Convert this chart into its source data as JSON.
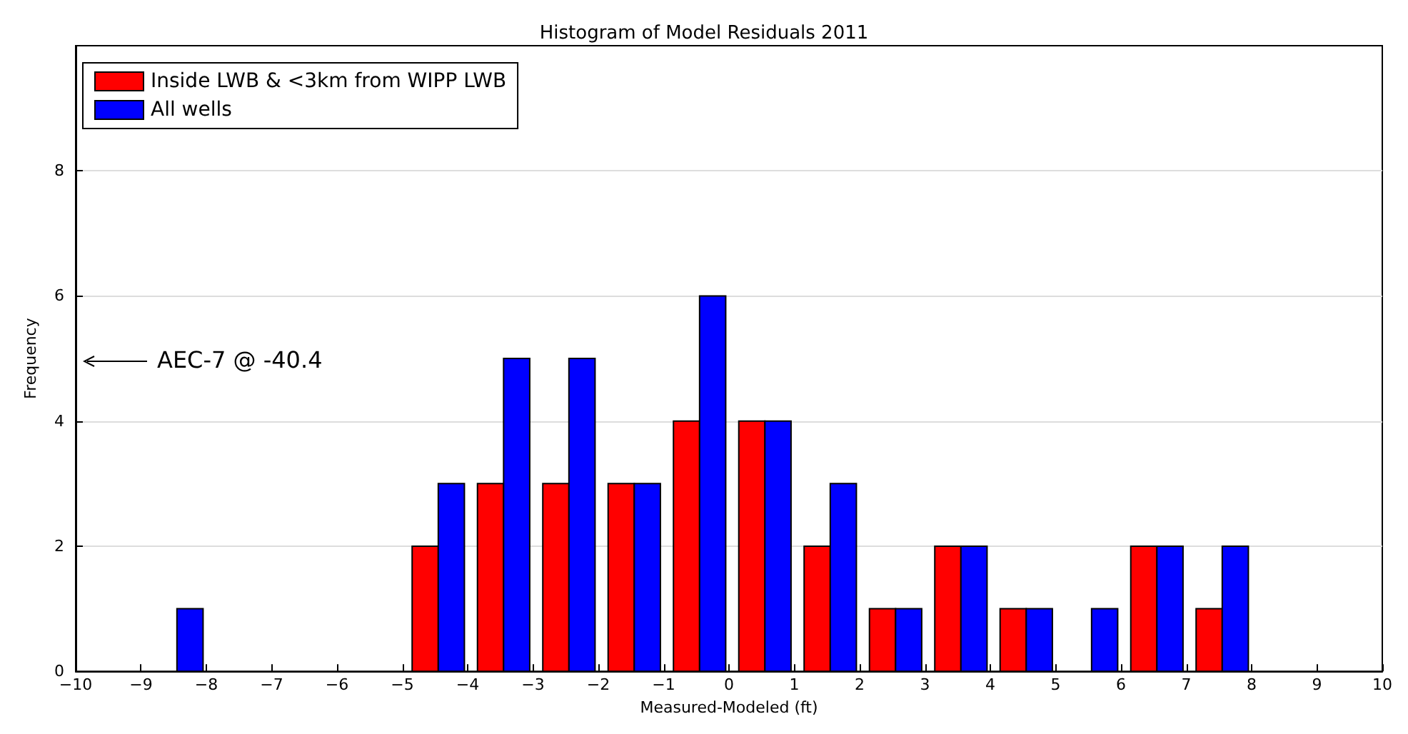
{
  "chart_data": {
    "type": "histogram",
    "title": "Histogram of Model Residuals 2011",
    "xlabel": "Measured-Modeled (ft)",
    "ylabel": "Frequency",
    "bins": [
      -8.95,
      -7.95,
      -6.95,
      -5.95,
      -4.95,
      -3.95,
      -2.95,
      -1.95,
      -0.95,
      0.05,
      1.05,
      2.05,
      3.05,
      4.05,
      5.05,
      6.05,
      7.05,
      8.05
    ],
    "series": [
      {
        "name": "Inside LWB & <3km from WIPP LWB",
        "color": "#ff0000",
        "values": [
          0,
          0,
          0,
          0,
          2,
          3,
          3,
          3,
          4,
          4,
          2,
          1,
          2,
          1,
          0,
          2,
          1
        ]
      },
      {
        "name": "All wells",
        "color": "#0000ff",
        "values": [
          1,
          0,
          0,
          0,
          3,
          5,
          5,
          3,
          6,
          4,
          3,
          1,
          2,
          1,
          1,
          2,
          2
        ]
      }
    ],
    "annotations": [
      "AEC-7 @ -40.4"
    ],
    "xlim": [
      -10,
      10
    ],
    "xticks": [
      -10,
      -9,
      -8,
      -7,
      -6,
      -5,
      -4,
      -3,
      -2,
      -1,
      0,
      1,
      2,
      3,
      4,
      5,
      6,
      7,
      8,
      9,
      10
    ],
    "ylim": [
      0,
      10
    ],
    "yticks": [
      0,
      2,
      4,
      6,
      8
    ],
    "grid": "y",
    "legend": "top left"
  }
}
